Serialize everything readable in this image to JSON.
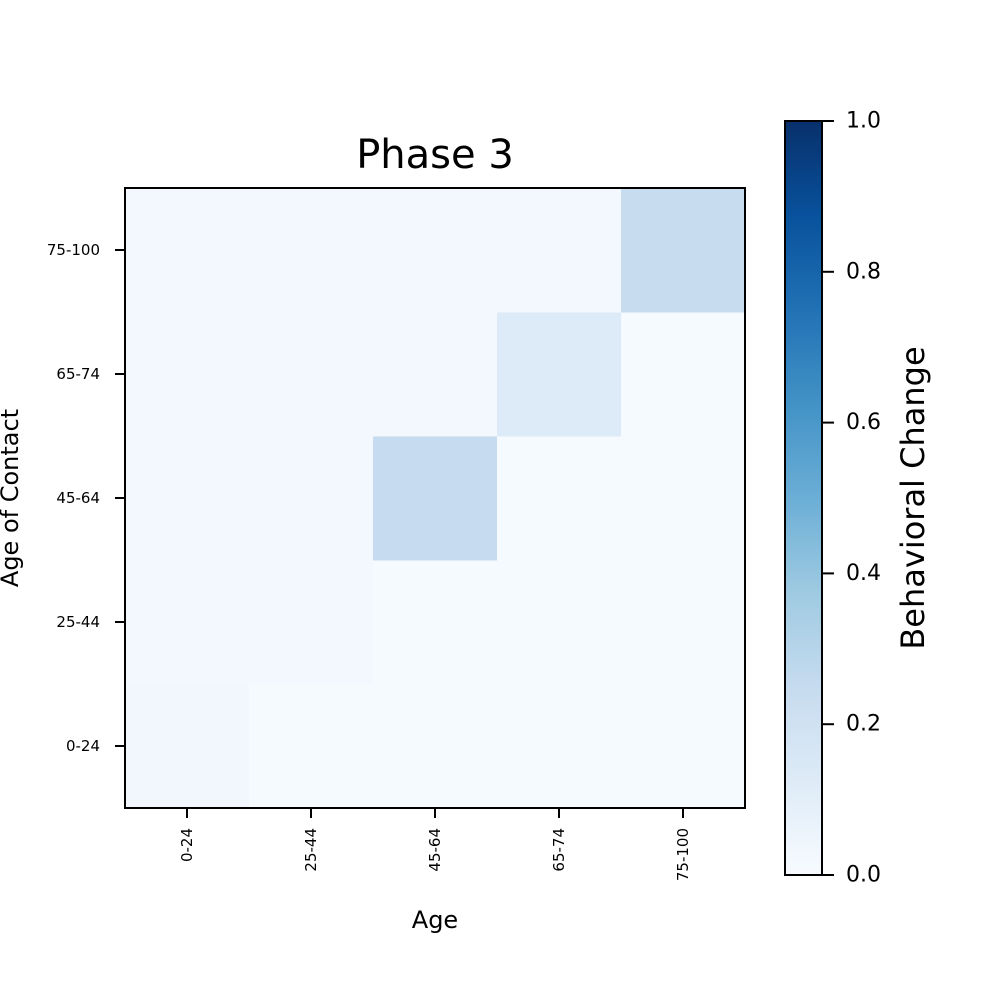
{
  "chart_data": {
    "type": "heatmap",
    "title": "Phase 3",
    "xlabel": "Age",
    "ylabel": "Age of Contact",
    "x_categories": [
      "0-24",
      "25-44",
      "45-64",
      "65-74",
      "75-100"
    ],
    "y_categories": [
      "0-24",
      "25-44",
      "45-64",
      "65-74",
      "75-100"
    ],
    "values": [
      [
        0.03,
        0.01,
        0.01,
        0.01,
        0.01
      ],
      [
        0.02,
        0.025,
        0.01,
        0.01,
        0.01
      ],
      [
        0.02,
        0.02,
        0.25,
        0.01,
        0.01
      ],
      [
        0.02,
        0.02,
        0.02,
        0.13,
        0.01
      ],
      [
        0.02,
        0.02,
        0.02,
        0.02,
        0.24
      ]
    ],
    "colormap": "Blues",
    "colorbar": {
      "label": "Behavioral Change",
      "range": [
        0.0,
        1.0
      ],
      "ticks": [
        "0.0",
        "0.2",
        "0.4",
        "0.6",
        "0.8",
        "1.0"
      ]
    },
    "grid": false
  }
}
